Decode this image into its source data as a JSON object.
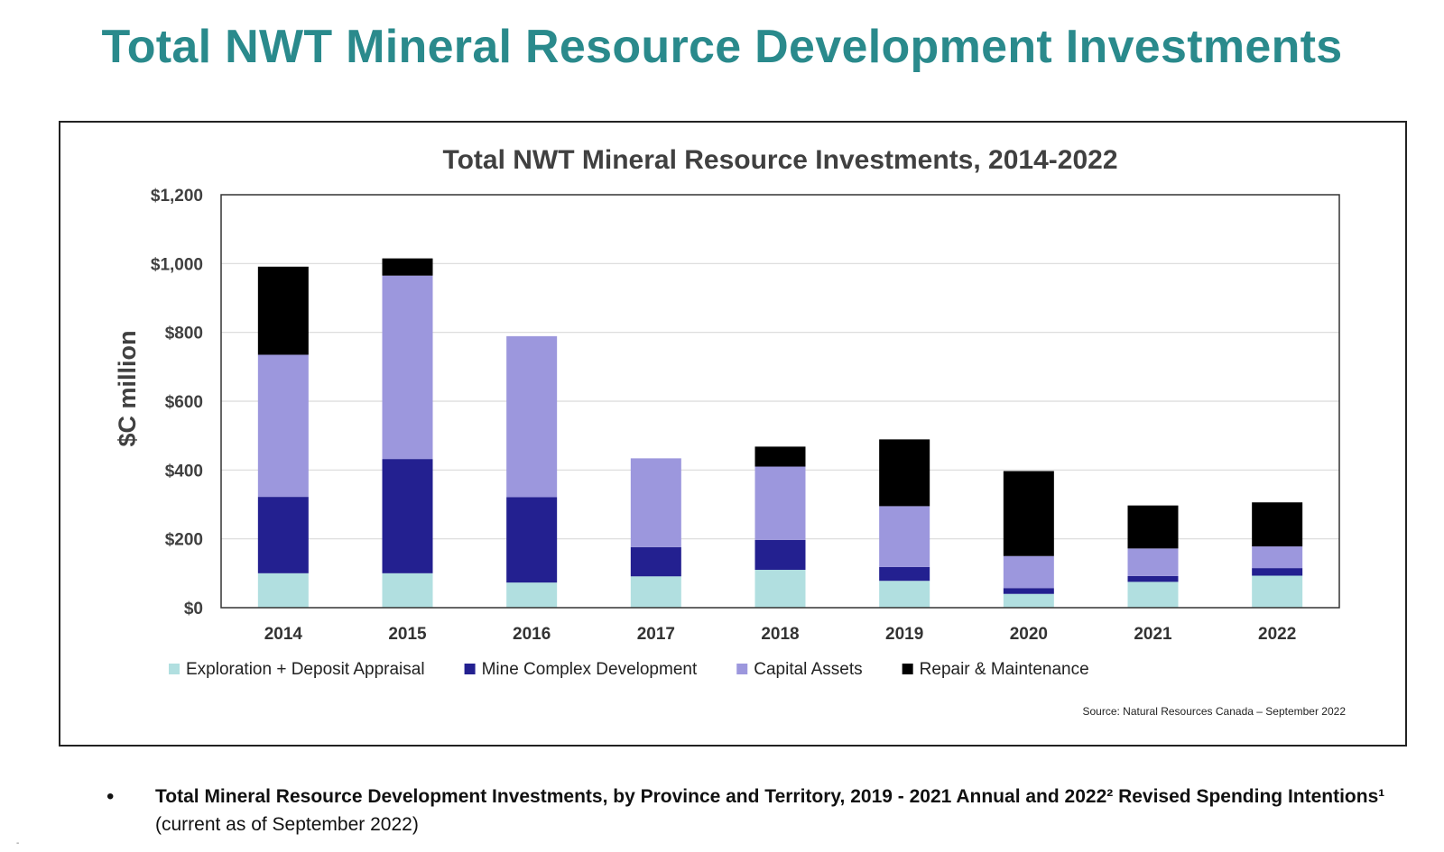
{
  "page_title": "Total NWT Mineral Resource Development Investments",
  "bullet": {
    "marker": "•",
    "bold_text": "Total Mineral Resource Development Investments, by Province and Territory, 2019 - 2021 Annual and 2022² Revised Spending Intentions¹",
    "normal_text": " (current as of September 2022)"
  },
  "corner_mark": "-",
  "colors": {
    "title": "#2a8a8c",
    "exploration": "#b1dfe0",
    "mine_complex": "#232090",
    "capital_assets": "#9c97dd",
    "repair": "#000000",
    "gridline": "#d9d9d9"
  },
  "chart_data": {
    "type": "bar",
    "stacked": true,
    "title": "Total NWT Mineral Resource Investments, 2014-2022",
    "xlabel": "",
    "ylabel": "$C million",
    "ylim": [
      0,
      1200
    ],
    "yticks": [
      0,
      200,
      400,
      600,
      800,
      1000,
      1200
    ],
    "ytick_labels": [
      "$0",
      "$200",
      "$400",
      "$600",
      "$800",
      "$1,000",
      "$1,200"
    ],
    "grid": true,
    "legend_position": "bottom",
    "source": "Source: Natural Resources Canada – September 2022",
    "categories": [
      "2014",
      "2015",
      "2016",
      "2017",
      "2018",
      "2019",
      "2020",
      "2021",
      "2022"
    ],
    "series": [
      {
        "name": "Exploration + Deposit Appraisal",
        "color_key": "exploration",
        "values": [
          100,
          100,
          73,
          91,
          110,
          78,
          40,
          75,
          93
        ]
      },
      {
        "name": "Mine Complex Development",
        "color_key": "mine_complex",
        "values": [
          222,
          332,
          248,
          85,
          87,
          40,
          17,
          17,
          22
        ]
      },
      {
        "name": "Capital Assets",
        "color_key": "capital_assets",
        "values": [
          413,
          533,
          468,
          258,
          213,
          177,
          93,
          80,
          63
        ]
      },
      {
        "name": "Repair & Maintenance",
        "color_key": "repair",
        "values": [
          256,
          50,
          0,
          0,
          58,
          194,
          247,
          125,
          128
        ]
      }
    ]
  }
}
